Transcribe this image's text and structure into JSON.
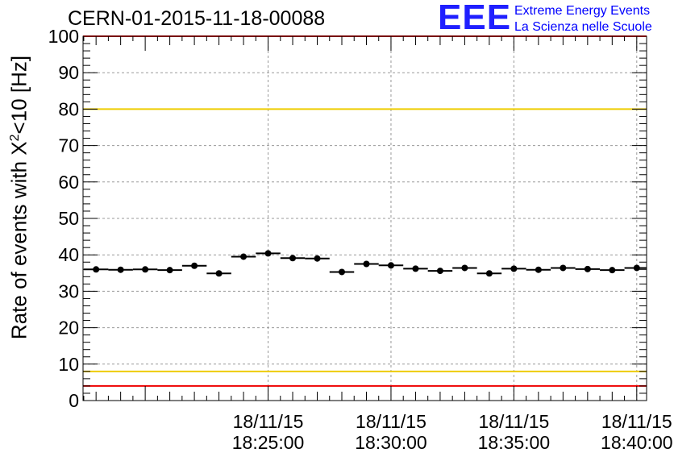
{
  "title": "CERN-01-2015-11-18-00088",
  "logo": {
    "mark": "EEE",
    "line1": "Extreme Energy Events",
    "line2": "La Scienza nelle Scuole",
    "color": "#1f1fff"
  },
  "chart_data": {
    "type": "scatter",
    "ylabel_prefix": "Rate of events with X",
    "ylabel_sup": "2",
    "ylabel_suffix": "<10 [Hz]",
    "ylim": [
      0,
      100
    ],
    "yticks": [
      "0",
      "10",
      "20",
      "30",
      "40",
      "50",
      "60",
      "70",
      "80",
      "90",
      "100"
    ],
    "x_unit": "minutes after 18:20:00 on 18/11/15",
    "xlim": [
      -2.53,
      20.4
    ],
    "xticks": [
      {
        "value": 5,
        "date": "18/11/15",
        "time": "18:25:00"
      },
      {
        "value": 10,
        "date": "18/11/15",
        "time": "18:30:00"
      },
      {
        "value": 15,
        "date": "18/11/15",
        "time": "18:35:00"
      },
      {
        "value": 20,
        "date": "18/11/15",
        "time": "18:40:00"
      }
    ],
    "grid": true,
    "bin_width": 1,
    "x": [
      -2.0,
      -1.0,
      0.0,
      1.0,
      2.0,
      3.0,
      4.0,
      5.0,
      6.0,
      7.0,
      8.0,
      9.0,
      10.0,
      11.0,
      12.0,
      13.0,
      14.0,
      15.0,
      16.0,
      17.0,
      18.0,
      19.0,
      20.0
    ],
    "values": [
      36.0,
      35.9,
      36.0,
      35.8,
      37.0,
      34.9,
      39.5,
      40.4,
      39.1,
      39.0,
      35.3,
      37.5,
      37.1,
      36.2,
      35.6,
      36.4,
      34.9,
      36.2,
      35.9,
      36.4,
      36.1,
      35.8,
      36.4
    ],
    "reference_lines": [
      {
        "value": 100,
        "color": "#ee0000"
      },
      {
        "value": 80,
        "color": "#eecc00"
      },
      {
        "value": 8,
        "color": "#eecc00"
      },
      {
        "value": 4,
        "color": "#ee0000"
      }
    ]
  }
}
